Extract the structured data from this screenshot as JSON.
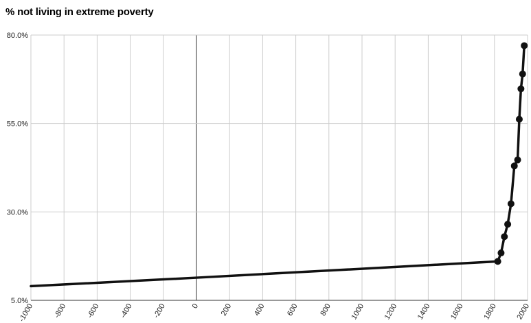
{
  "chart_data": {
    "type": "line",
    "title": "% not living in extreme poverty",
    "xlabel": "",
    "ylabel": "",
    "xlim": [
      -1000,
      2000
    ],
    "ylim": [
      5,
      80
    ],
    "x_ticks": [
      -1000,
      -800,
      -600,
      -400,
      -200,
      0,
      200,
      400,
      600,
      800,
      1000,
      1200,
      1400,
      1600,
      1800,
      2000
    ],
    "y_ticks": [
      5,
      30,
      55,
      80
    ],
    "y_tick_labels": [
      "5.0%",
      "30.0%",
      "55.0%",
      "80.0%"
    ],
    "grid": true,
    "legend": "none",
    "line_color": "#111111",
    "series": [
      {
        "name": "",
        "points": [
          {
            "x": -1000,
            "y": 9.0
          },
          {
            "x": 0,
            "y": 11.4
          },
          {
            "x": 1820,
            "y": 16.0
          },
          {
            "x": 1840,
            "y": 18.4
          },
          {
            "x": 1860,
            "y": 23.0
          },
          {
            "x": 1880,
            "y": 26.5
          },
          {
            "x": 1900,
            "y": 32.3
          },
          {
            "x": 1920,
            "y": 43.0
          },
          {
            "x": 1940,
            "y": 44.7
          },
          {
            "x": 1950,
            "y": 56.2
          },
          {
            "x": 1960,
            "y": 64.8
          },
          {
            "x": 1970,
            "y": 69.0
          },
          {
            "x": 1980,
            "y": 77.0
          }
        ],
        "markers_from_x": 1820
      }
    ]
  }
}
